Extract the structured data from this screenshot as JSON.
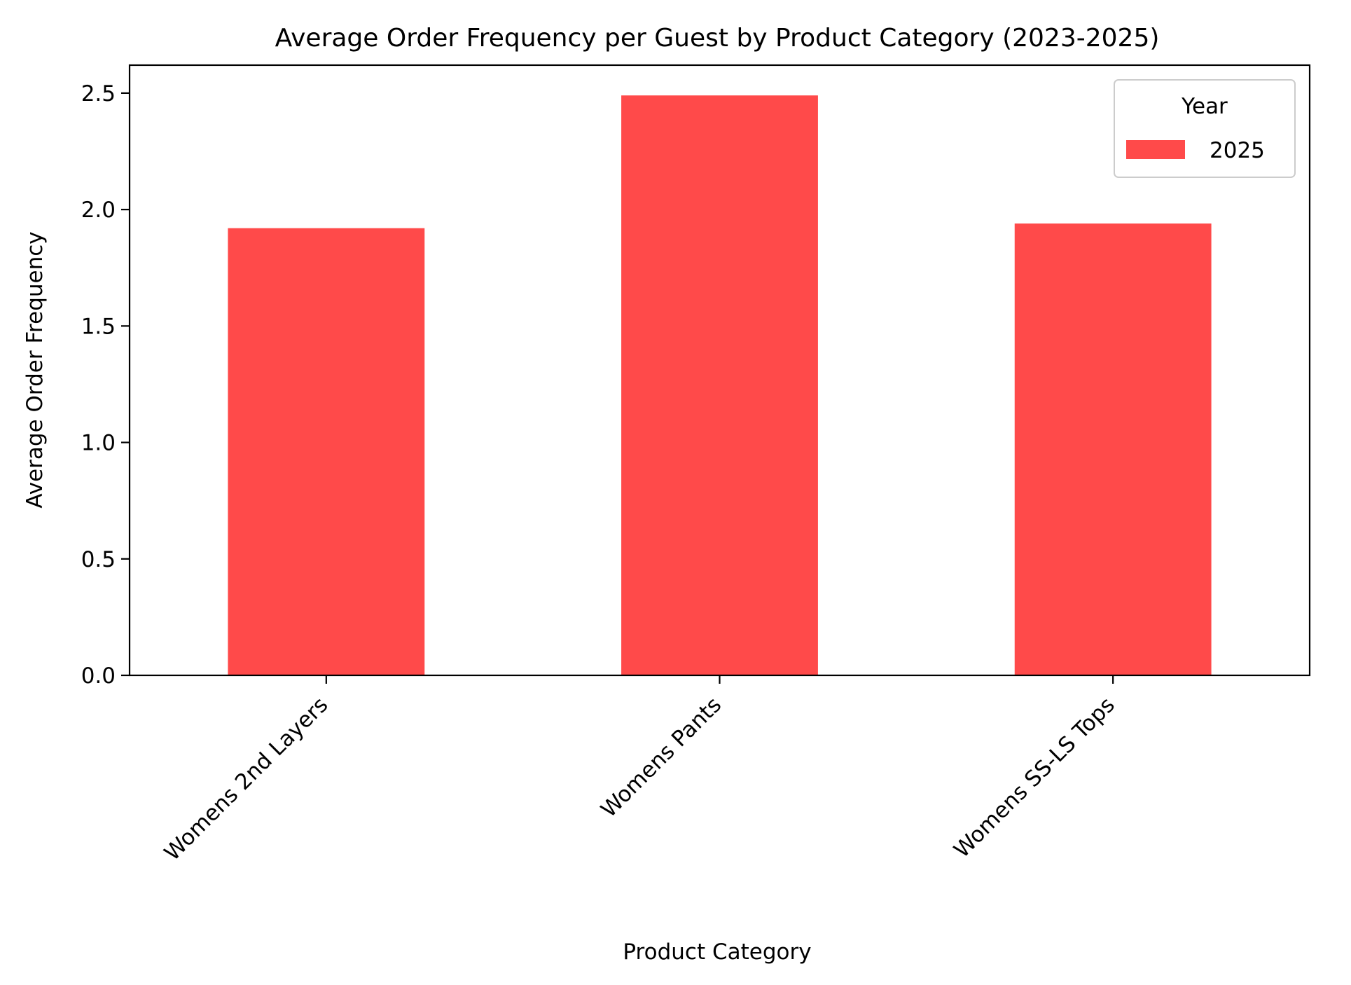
{
  "chart_data": {
    "type": "bar",
    "title": "Average Order Frequency per Guest by Product Category (2023-2025)",
    "xlabel": "Product Category",
    "ylabel": "Average Order Frequency",
    "categories": [
      "Womens 2nd Layers",
      "Womens Pants",
      "Womens SS-LS Tops"
    ],
    "series": [
      {
        "name": "2025",
        "values": [
          1.92,
          2.49,
          1.94
        ],
        "color": "#ff4a4a"
      }
    ],
    "ylim": [
      0,
      2.62
    ],
    "yticks": [
      "0.0",
      "0.5",
      "1.0",
      "1.5",
      "2.0",
      "2.5"
    ],
    "legend": {
      "title": "Year",
      "position": "top-right"
    },
    "grid": false
  }
}
